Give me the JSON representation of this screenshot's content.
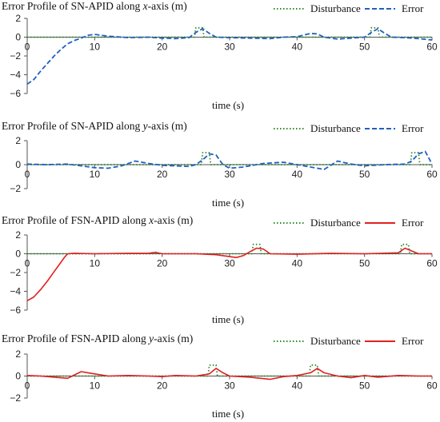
{
  "chart_data": [
    {
      "type": "line",
      "title_prefix": "Error Profile of SN-APID along ",
      "title_axis": "x",
      "title_suffix": "-axis (m)",
      "xlabel": "time (s)",
      "ylabel": "",
      "xlim": [
        0,
        60
      ],
      "ylim": [
        -6,
        2
      ],
      "xticks": [
        0,
        10,
        20,
        30,
        40,
        50,
        60
      ],
      "yticks": [
        2,
        0,
        -2,
        -4,
        -6
      ],
      "grid": false,
      "legend_position": "top-right",
      "series": [
        {
          "name": "Disturbance",
          "color": "#2e8b2e",
          "style": "dotted",
          "x": [
            0,
            24.8,
            25,
            26,
            26.2,
            50.8,
            51,
            52,
            52.2,
            60
          ],
          "y": [
            0,
            0,
            1,
            1,
            0,
            0,
            1,
            1,
            0,
            0
          ]
        },
        {
          "name": "Error",
          "color": "#2060c0",
          "style": "dashed",
          "x": [
            0,
            1,
            2,
            3,
            4,
            5,
            6,
            7,
            8,
            9,
            10,
            12,
            15,
            18,
            20,
            22,
            24,
            25,
            26,
            27,
            28,
            30,
            33,
            36,
            38,
            40,
            42,
            43,
            44,
            46,
            48,
            50,
            51,
            52,
            53,
            54,
            56,
            58,
            60
          ],
          "y": [
            -5,
            -4.5,
            -3.6,
            -2.8,
            -2.0,
            -1.3,
            -0.7,
            -0.35,
            -0.1,
            0.2,
            0.3,
            0.1,
            -0.05,
            0.0,
            -0.1,
            -0.15,
            -0.05,
            0.5,
            0.9,
            0.4,
            0.0,
            -0.05,
            -0.1,
            -0.15,
            0.0,
            0.05,
            0.4,
            0.35,
            0.0,
            -0.2,
            -0.1,
            0.0,
            0.5,
            0.9,
            0.4,
            0.0,
            -0.05,
            -0.15,
            -0.3
          ]
        }
      ]
    },
    {
      "type": "line",
      "title_prefix": "Error Profile of SN-APID along ",
      "title_axis": "y",
      "title_suffix": "-axis (m)",
      "xlabel": "time (s)",
      "ylabel": "",
      "xlim": [
        0,
        60
      ],
      "ylim": [
        -2,
        2
      ],
      "xticks": [
        0,
        10,
        20,
        30,
        40,
        50,
        60
      ],
      "yticks": [
        2,
        0,
        -2
      ],
      "grid": false,
      "legend_position": "top-right",
      "series": [
        {
          "name": "Disturbance",
          "color": "#2e8b2e",
          "style": "dotted",
          "x": [
            0,
            25.8,
            26,
            27,
            27.2,
            56.8,
            57,
            58,
            58.2,
            60
          ],
          "y": [
            0,
            0,
            1,
            1,
            0,
            0,
            1,
            1,
            0,
            0
          ]
        },
        {
          "name": "Error",
          "color": "#2060c0",
          "style": "dashed",
          "x": [
            0,
            3,
            6,
            8,
            10,
            12,
            14,
            16,
            18,
            20,
            22,
            24,
            25,
            26,
            27,
            28,
            29,
            30,
            32,
            35,
            38,
            40,
            42,
            44,
            46,
            48,
            50,
            53,
            56,
            57,
            58,
            59,
            60
          ],
          "y": [
            0.05,
            0.0,
            0.05,
            -0.1,
            -0.25,
            -0.3,
            -0.1,
            0.3,
            0.1,
            -0.05,
            -0.1,
            -0.15,
            0.0,
            0.4,
            0.9,
            0.8,
            0.0,
            -0.3,
            -0.2,
            0.1,
            0.2,
            0.0,
            -0.2,
            -0.4,
            0.3,
            0.05,
            -0.1,
            0.0,
            0.05,
            0.3,
            0.9,
            1.1,
            0.05
          ]
        }
      ]
    },
    {
      "type": "line",
      "title_prefix": "Error Profile of FSN-APID along ",
      "title_axis": "x",
      "title_suffix": "-axis (m)",
      "xlabel": "time (s)",
      "ylabel": "",
      "xlim": [
        0,
        60
      ],
      "ylim": [
        -6,
        2
      ],
      "xticks": [
        0,
        10,
        20,
        30,
        40,
        50,
        60
      ],
      "yticks": [
        2,
        0,
        -2,
        -4,
        -6
      ],
      "grid": false,
      "legend_position": "top-right",
      "series": [
        {
          "name": "Disturbance",
          "color": "#2e8b2e",
          "style": "dotted",
          "x": [
            0,
            33.3,
            33.5,
            34.5,
            34.7,
            55.3,
            55.5,
            56.5,
            56.7,
            60
          ],
          "y": [
            0,
            0,
            1,
            1,
            0,
            0,
            1,
            1,
            0,
            0
          ]
        },
        {
          "name": "Error",
          "color": "#e02020",
          "style": "solid",
          "x": [
            0,
            1,
            2,
            3,
            4,
            5,
            5.5,
            6,
            7,
            10,
            15,
            18,
            19,
            20,
            25,
            28,
            31,
            32,
            33,
            34,
            35,
            36,
            40,
            45,
            50,
            55,
            56,
            57,
            58,
            60
          ],
          "y": [
            -5,
            -4.6,
            -3.8,
            -2.9,
            -1.9,
            -0.9,
            -0.4,
            0.0,
            0.05,
            0.0,
            0.05,
            0.05,
            0.15,
            0.0,
            0.0,
            -0.1,
            -0.4,
            -0.2,
            0.2,
            0.6,
            0.5,
            0.0,
            -0.05,
            0.05,
            0.0,
            0.1,
            0.6,
            0.3,
            0.0,
            0.0
          ]
        }
      ]
    },
    {
      "type": "line",
      "title_prefix": "Error Profile of FSN-APID along ",
      "title_axis": "y",
      "title_suffix": "-axis (m)",
      "xlabel": "time (s)",
      "ylabel": "",
      "xlim": [
        0,
        60
      ],
      "ylim": [
        -2,
        2
      ],
      "xticks": [
        0,
        10,
        20,
        30,
        40,
        50,
        60
      ],
      "yticks": [
        2,
        0,
        -2
      ],
      "grid": false,
      "legend_position": "top-right",
      "series": [
        {
          "name": "Disturbance",
          "color": "#2e8b2e",
          "style": "dotted",
          "x": [
            0,
            26.8,
            27,
            28,
            28.2,
            41.8,
            42,
            43,
            43.2,
            60
          ],
          "y": [
            0,
            0,
            1,
            1,
            0,
            0,
            1,
            1,
            0,
            0
          ]
        },
        {
          "name": "Error",
          "color": "#e02020",
          "style": "solid",
          "x": [
            0,
            2,
            4,
            6,
            7,
            8,
            9,
            10,
            12,
            15,
            18,
            20,
            22,
            25,
            27,
            28,
            29,
            30,
            33,
            36,
            38,
            40,
            42,
            43,
            44,
            46,
            48,
            50,
            52,
            55,
            58,
            60
          ],
          "y": [
            0.05,
            0.0,
            -0.1,
            -0.2,
            0.1,
            0.4,
            0.3,
            0.2,
            0.0,
            0.05,
            0.0,
            -0.05,
            0.05,
            0.0,
            0.2,
            0.7,
            0.3,
            0.0,
            -0.1,
            -0.3,
            -0.05,
            0.05,
            0.3,
            0.7,
            0.3,
            0.0,
            -0.15,
            0.05,
            -0.1,
            0.05,
            0.0,
            0.0
          ]
        }
      ]
    }
  ]
}
